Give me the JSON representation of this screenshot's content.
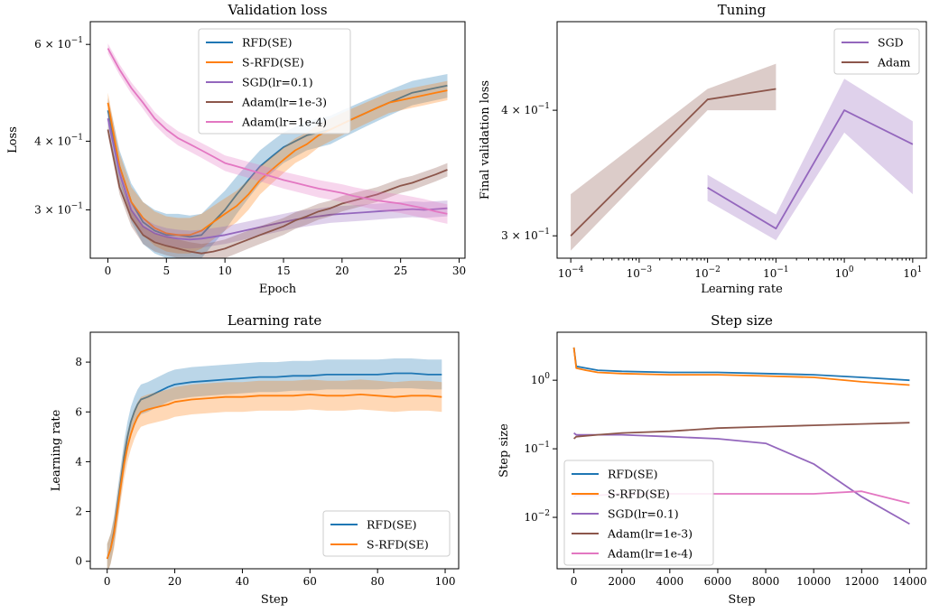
{
  "colors": {
    "rfd": "#1f77b4",
    "srfd": "#ff7f0e",
    "sgd": "#9467bd",
    "adam3": "#8c564b",
    "adam4": "#e377c2"
  },
  "chart_data": [
    {
      "id": "validation-loss",
      "type": "line",
      "title": "Validation loss",
      "xlabel": "Epoch",
      "ylabel": "Loss",
      "xlim": [
        -1.5,
        30.5
      ],
      "ylim": [
        0.245,
        0.66
      ],
      "yscale": "log",
      "xticks": [
        0,
        5,
        10,
        15,
        20,
        25,
        30
      ],
      "yticks": [
        {
          "value": 0.3,
          "label": "3 × 10"
        },
        {
          "value": 0.4,
          "label": "4 × 10"
        },
        {
          "value": 0.6,
          "label": "6 × 10"
        }
      ],
      "ytick_exponent": "−1",
      "legend_position": "top-center",
      "series": [
        {
          "name": "RFD(SE)",
          "color": "rfd",
          "x": [
            0,
            1,
            2,
            3,
            4,
            5,
            6,
            7,
            8,
            9,
            10,
            11,
            12,
            13,
            14,
            15,
            16,
            17,
            18,
            19,
            20,
            21,
            22,
            23,
            24,
            25,
            26,
            27,
            28,
            29
          ],
          "y": [
            0.455,
            0.36,
            0.31,
            0.285,
            0.275,
            0.27,
            0.27,
            0.268,
            0.27,
            0.285,
            0.3,
            0.32,
            0.34,
            0.36,
            0.375,
            0.39,
            0.4,
            0.41,
            0.415,
            0.42,
            0.43,
            0.44,
            0.45,
            0.46,
            0.47,
            0.48,
            0.49,
            0.495,
            0.5,
            0.505
          ],
          "band": 0.025
        },
        {
          "name": "S-RFD(SE)",
          "color": "srfd",
          "x": [
            0,
            1,
            2,
            3,
            4,
            5,
            6,
            7,
            8,
            9,
            10,
            11,
            12,
            13,
            14,
            15,
            16,
            17,
            18,
            19,
            20,
            21,
            22,
            23,
            24,
            25,
            26,
            27,
            28,
            29
          ],
          "y": [
            0.47,
            0.36,
            0.31,
            0.29,
            0.278,
            0.272,
            0.27,
            0.27,
            0.275,
            0.285,
            0.295,
            0.305,
            0.32,
            0.34,
            0.355,
            0.37,
            0.385,
            0.395,
            0.41,
            0.42,
            0.43,
            0.44,
            0.45,
            0.46,
            0.47,
            0.475,
            0.48,
            0.485,
            0.49,
            0.495
          ],
          "band": 0.02
        },
        {
          "name": "SGD(lr=0.1)",
          "color": "sgd",
          "x": [
            0,
            1,
            2,
            3,
            4,
            5,
            6,
            7,
            8,
            9,
            10,
            11,
            12,
            13,
            14,
            15,
            16,
            17,
            18,
            19,
            20,
            21,
            22,
            23,
            24,
            25,
            26,
            27,
            28,
            29
          ],
          "y": [
            0.44,
            0.35,
            0.3,
            0.28,
            0.272,
            0.268,
            0.266,
            0.265,
            0.266,
            0.268,
            0.27,
            0.273,
            0.276,
            0.279,
            0.282,
            0.285,
            0.288,
            0.29,
            0.292,
            0.294,
            0.295,
            0.296,
            0.297,
            0.298,
            0.299,
            0.3,
            0.301,
            0.3,
            0.301,
            0.302
          ],
          "band": 0.01
        },
        {
          "name": "Adam(lr=1e-3)",
          "color": "adam3",
          "x": [
            0,
            1,
            2,
            3,
            4,
            5,
            6,
            7,
            8,
            9,
            10,
            11,
            12,
            13,
            14,
            15,
            16,
            17,
            18,
            19,
            20,
            21,
            22,
            23,
            24,
            25,
            26,
            27,
            28,
            29
          ],
          "y": [
            0.42,
            0.33,
            0.29,
            0.27,
            0.262,
            0.258,
            0.255,
            0.252,
            0.25,
            0.252,
            0.255,
            0.26,
            0.265,
            0.27,
            0.275,
            0.28,
            0.287,
            0.292,
            0.298,
            0.302,
            0.308,
            0.312,
            0.316,
            0.32,
            0.326,
            0.332,
            0.336,
            0.342,
            0.348,
            0.355
          ],
          "band": 0.01
        },
        {
          "name": "Adam(lr=1e-4)",
          "color": "adam4",
          "x": [
            0,
            1,
            2,
            3,
            4,
            5,
            6,
            7,
            8,
            9,
            10,
            11,
            12,
            13,
            14,
            15,
            16,
            17,
            18,
            19,
            20,
            21,
            22,
            23,
            24,
            25,
            26,
            27,
            28,
            29
          ],
          "y": [
            0.59,
            0.54,
            0.5,
            0.47,
            0.44,
            0.42,
            0.405,
            0.395,
            0.385,
            0.375,
            0.365,
            0.36,
            0.355,
            0.35,
            0.345,
            0.34,
            0.336,
            0.332,
            0.328,
            0.325,
            0.322,
            0.318,
            0.315,
            0.312,
            0.31,
            0.308,
            0.305,
            0.302,
            0.298,
            0.295
          ],
          "band": 0.012
        }
      ]
    },
    {
      "id": "tuning",
      "type": "line",
      "title": "Tuning",
      "xlabel": "Learning rate",
      "ylabel": "Final validation loss",
      "xscale": "log",
      "yscale": "log",
      "xlim_log10": [
        -4.2,
        1.2
      ],
      "ylim": [
        0.285,
        0.49
      ],
      "xtick_exponents": [
        "−4",
        "−3",
        "−2",
        "−1",
        "0",
        "1"
      ],
      "yticks": [
        {
          "value": 0.3,
          "label": "3 × 10"
        },
        {
          "value": 0.4,
          "label": "4 × 10"
        }
      ],
      "ytick_exponent": "−1",
      "legend_position": "top-right",
      "series": [
        {
          "name": "SGD",
          "color": "sgd",
          "x": [
            0.01,
            0.1,
            1,
            10
          ],
          "y": [
            0.335,
            0.305,
            0.4,
            0.37
          ],
          "lower": [
            0.325,
            0.297,
            0.38,
            0.33
          ],
          "upper": [
            0.345,
            0.315,
            0.43,
            0.39
          ]
        },
        {
          "name": "Adam",
          "color": "adam3",
          "x": [
            0.0001,
            0.01,
            0.1
          ],
          "y": [
            0.3,
            0.41,
            0.42
          ],
          "lower": [
            0.29,
            0.4,
            0.4
          ],
          "upper": [
            0.33,
            0.42,
            0.445
          ]
        }
      ]
    },
    {
      "id": "learning-rate",
      "type": "line",
      "title": "Learning rate",
      "xlabel": "Step",
      "ylabel": "Learning rate",
      "xlim": [
        -5,
        104
      ],
      "ylim": [
        -0.3,
        9.2
      ],
      "xticks": [
        0,
        20,
        40,
        60,
        80,
        100
      ],
      "yticks": [
        0,
        2,
        4,
        6,
        8
      ],
      "legend_position": "bottom-right",
      "series": [
        {
          "name": "RFD(SE)",
          "color": "rfd",
          "x": [
            0,
            1,
            2,
            3,
            4,
            5,
            6,
            7,
            8,
            9,
            10,
            12,
            15,
            18,
            20,
            25,
            30,
            35,
            40,
            45,
            50,
            55,
            60,
            65,
            70,
            75,
            80,
            85,
            90,
            95,
            99
          ],
          "y": [
            0.1,
            0.5,
            1.2,
            2.2,
            3.2,
            4.2,
            5.0,
            5.6,
            6.0,
            6.3,
            6.5,
            6.6,
            6.8,
            7.0,
            7.1,
            7.2,
            7.25,
            7.3,
            7.35,
            7.4,
            7.4,
            7.45,
            7.45,
            7.5,
            7.5,
            7.5,
            7.5,
            7.55,
            7.55,
            7.5,
            7.5
          ],
          "band": 0.6
        },
        {
          "name": "S-RFD(SE)",
          "color": "srfd",
          "x": [
            0,
            1,
            2,
            3,
            4,
            5,
            6,
            7,
            8,
            9,
            10,
            12,
            15,
            18,
            20,
            25,
            30,
            35,
            40,
            45,
            50,
            55,
            60,
            65,
            70,
            75,
            80,
            85,
            90,
            95,
            99
          ],
          "y": [
            0.1,
            0.5,
            1.1,
            2.0,
            3.0,
            3.9,
            4.6,
            5.1,
            5.5,
            5.8,
            6.0,
            6.1,
            6.2,
            6.3,
            6.4,
            6.5,
            6.55,
            6.6,
            6.6,
            6.65,
            6.65,
            6.65,
            6.7,
            6.65,
            6.65,
            6.7,
            6.65,
            6.6,
            6.65,
            6.65,
            6.6
          ],
          "band": 0.6
        }
      ]
    },
    {
      "id": "step-size",
      "type": "line",
      "title": "Step size",
      "xlabel": "Step",
      "ylabel": "Step size",
      "yscale": "log",
      "xlim": [
        -700,
        14700
      ],
      "ylim_log10": [
        -2.75,
        0.7
      ],
      "xticks": [
        0,
        2000,
        4000,
        6000,
        8000,
        10000,
        12000,
        14000
      ],
      "ytick_exponents": [
        "0",
        "−1",
        "−2"
      ],
      "legend_position": "bottom-left",
      "series": [
        {
          "name": "RFD(SE)",
          "color": "rfd",
          "x": [
            0,
            100,
            500,
            1000,
            2000,
            4000,
            6000,
            8000,
            10000,
            12000,
            14000
          ],
          "y": [
            3.0,
            1.6,
            1.5,
            1.4,
            1.35,
            1.3,
            1.3,
            1.25,
            1.2,
            1.1,
            1.0
          ]
        },
        {
          "name": "S-RFD(SE)",
          "color": "srfd",
          "x": [
            0,
            100,
            500,
            1000,
            2000,
            4000,
            6000,
            8000,
            10000,
            12000,
            14000
          ],
          "y": [
            3.0,
            1.5,
            1.4,
            1.3,
            1.25,
            1.2,
            1.2,
            1.15,
            1.1,
            0.95,
            0.85
          ]
        },
        {
          "name": "SGD(lr=0.1)",
          "color": "sgd",
          "x": [
            0,
            100,
            1000,
            2000,
            4000,
            6000,
            8000,
            10000,
            12000,
            14000
          ],
          "y": [
            0.17,
            0.16,
            0.16,
            0.16,
            0.15,
            0.14,
            0.12,
            0.06,
            0.02,
            0.008
          ]
        },
        {
          "name": "Adam(lr=1e-3)",
          "color": "adam3",
          "x": [
            0,
            100,
            1000,
            2000,
            4000,
            6000,
            8000,
            10000,
            12000,
            14000
          ],
          "y": [
            0.14,
            0.15,
            0.16,
            0.17,
            0.18,
            0.2,
            0.21,
            0.22,
            0.23,
            0.24
          ]
        },
        {
          "name": "Adam(lr=1e-4)",
          "color": "adam4",
          "x": [
            0,
            100,
            1000,
            2000,
            4000,
            6000,
            8000,
            10000,
            12000,
            14000
          ],
          "y": [
            0.02,
            0.021,
            0.021,
            0.022,
            0.022,
            0.022,
            0.022,
            0.022,
            0.024,
            0.016
          ]
        }
      ]
    }
  ]
}
